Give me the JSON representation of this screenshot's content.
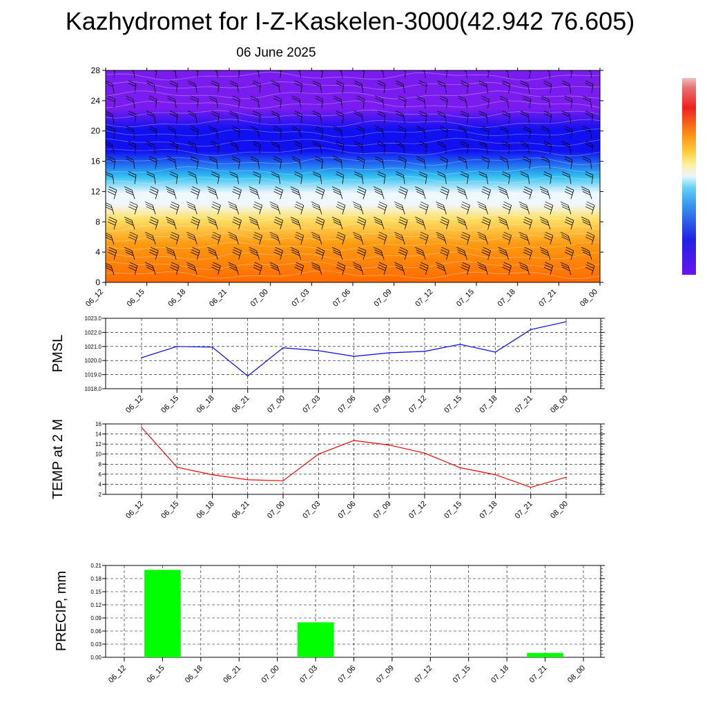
{
  "title": "Kazhydromet for I-Z-Kaskelen-3000(42.942 76.605)",
  "date": "06 June 2025",
  "colors": {
    "pmsl_line": "#0000ff",
    "temp_line": "#ff0000",
    "precip_bar": "#00ff00"
  },
  "chart_data": [
    {
      "type": "heatmap",
      "name": "cross-section",
      "categories": [
        "06_12",
        "06_15",
        "06_18",
        "06_21",
        "07_00",
        "07_03",
        "07_06",
        "07_09",
        "07_12",
        "07_15",
        "07_18",
        "07_21",
        "08_00"
      ],
      "ylim": [
        0,
        28
      ],
      "yticks": [
        0,
        4,
        8,
        12,
        16,
        20,
        24,
        28
      ],
      "colormap": [
        "#7a1cf0",
        "#1010f0",
        "#30c0f0",
        "#f0f8ff",
        "#ffe066",
        "#ff9a10",
        "#ff6a00"
      ],
      "wind_barbs": true,
      "colorbar": "right"
    },
    {
      "type": "line",
      "ylabel": "PMSL",
      "categories": [
        "06_12",
        "06_15",
        "06_18",
        "06_21",
        "07_00",
        "07_03",
        "07_06",
        "07_09",
        "07_12",
        "07_15",
        "07_18",
        "07_21",
        "08_00"
      ],
      "values": [
        1020.2,
        1021.0,
        1020.95,
        1018.9,
        1020.9,
        1020.7,
        1020.3,
        1020.55,
        1020.65,
        1021.15,
        1020.6,
        1022.2,
        1022.75
      ],
      "ylim": [
        1018.0,
        1023.0
      ],
      "yticks": [
        "1018.0",
        "1019.0",
        "1020.0",
        "1021.0",
        "1022.0",
        "1023.0"
      ],
      "grid": true
    },
    {
      "type": "line",
      "ylabel": "TEMP at 2 M",
      "categories": [
        "06_12",
        "06_15",
        "06_18",
        "06_21",
        "07_00",
        "07_03",
        "07_06",
        "07_09",
        "07_12",
        "07_15",
        "07_18",
        "07_21",
        "08_00"
      ],
      "values": [
        15.3,
        7.4,
        5.9,
        4.9,
        4.7,
        10.0,
        12.7,
        11.8,
        10.2,
        7.3,
        5.9,
        3.4,
        5.4
      ],
      "ylim": [
        2,
        16
      ],
      "yticks": [
        "2",
        "4",
        "6",
        "8",
        "10",
        "12",
        "14",
        "16"
      ],
      "grid": true
    },
    {
      "type": "bar",
      "ylabel": "PRECIP, mm",
      "categories": [
        "06_12",
        "06_15",
        "06_18",
        "06_21",
        "07_00",
        "07_03",
        "07_06",
        "07_09",
        "07_12",
        "07_15",
        "07_18",
        "07_21",
        "08_00"
      ],
      "values": [
        0,
        0.2,
        0,
        0,
        0,
        0.08,
        0,
        0,
        0,
        0,
        0,
        0.01,
        0
      ],
      "ylim": [
        0,
        0.21
      ],
      "yticks": [
        "0.00",
        "0.03",
        "0.06",
        "0.09",
        "0.12",
        "0.15",
        "0.18",
        "0.21"
      ],
      "grid": true
    }
  ]
}
